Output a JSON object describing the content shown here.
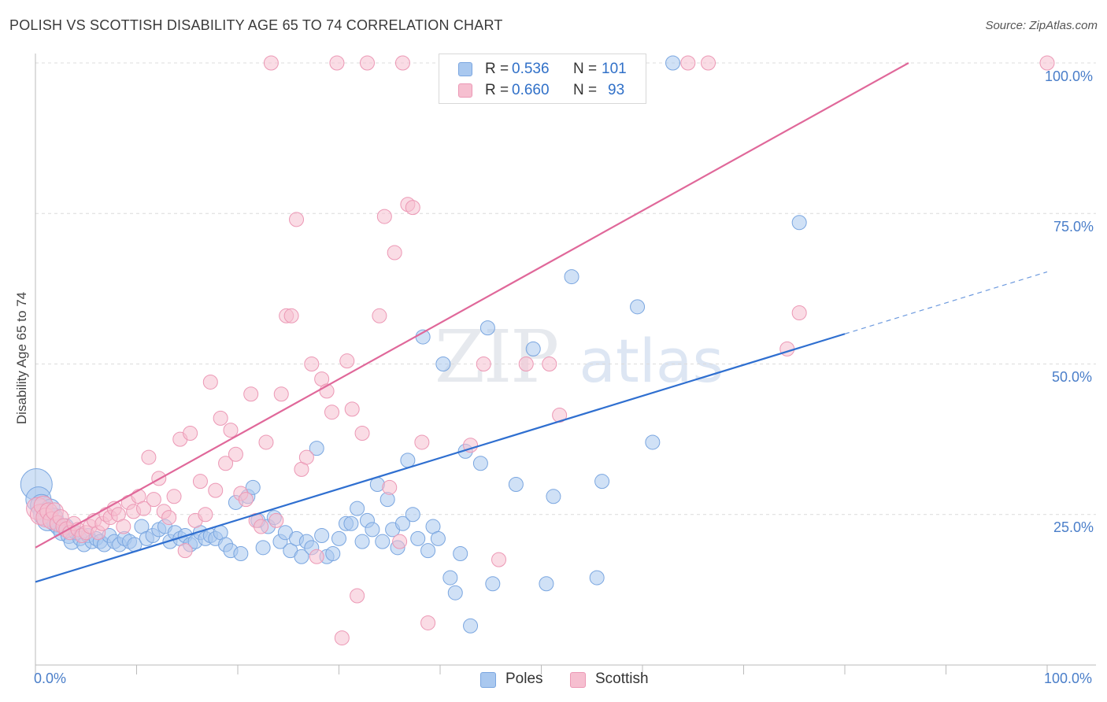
{
  "header": {
    "title": "POLISH VS SCOTTISH DISABILITY AGE 65 TO 74 CORRELATION CHART",
    "source": "Source: ZipAtlas.com"
  },
  "watermark": {
    "zip": "ZIP",
    "atlas": "atlas"
  },
  "colors": {
    "poles_fill": "#a9c8ef",
    "poles_stroke": "#7aa6e0",
    "poles_line": "#2f6fd0",
    "scottish_fill": "#f6bfd0",
    "scottish_stroke": "#ec98b5",
    "scottish_line": "#e0689a",
    "tick_text": "#4a7ec9",
    "grid": "#dcdcdc"
  },
  "legend_top": {
    "poles": {
      "r_label": "R =",
      "r_value": "0.536",
      "n_label": "N =",
      "n_value": "101"
    },
    "scottish": {
      "r_label": "R =",
      "r_value": "0.660",
      "n_label": "N =",
      "n_value": "93"
    }
  },
  "chart_data": {
    "type": "scatter",
    "title": "POLISH VS SCOTTISH DISABILITY AGE 65 TO 74 CORRELATION CHART",
    "xlabel": "",
    "ylabel": "Disability Age 65 to 74",
    "xlim": [
      0,
      100
    ],
    "ylim": [
      0,
      100
    ],
    "x_tick_labels": [
      "0.0%",
      "100.0%"
    ],
    "y_ticks": [
      25,
      50,
      75,
      100
    ],
    "y_tick_labels": [
      "25.0%",
      "50.0%",
      "75.0%",
      "100.0%"
    ],
    "grid": "horizontal dashed",
    "legend_placement": "bottom-center",
    "series": [
      {
        "name": "Poles",
        "r": 0.536,
        "n": 101,
        "trend": {
          "x": [
            0,
            80
          ],
          "y": [
            13.8,
            55.0
          ],
          "dashed_extension": {
            "x": [
              80,
              100
            ],
            "y": [
              55.0,
              65.3
            ]
          }
        },
        "points": [
          [
            0.1,
            30.0,
            20
          ],
          [
            0.3,
            27.5,
            16
          ],
          [
            0.6,
            26.5,
            14
          ],
          [
            0.9,
            25.0,
            14
          ],
          [
            1.2,
            24.0,
            13
          ],
          [
            1.5,
            26.0,
            12
          ],
          [
            1.8,
            24.5,
            12
          ],
          [
            2.0,
            23.5,
            11
          ],
          [
            2.3,
            23.0,
            11
          ],
          [
            2.6,
            22.0,
            10
          ],
          [
            3.0,
            23.0,
            10
          ],
          [
            3.3,
            21.5,
            10
          ],
          [
            3.6,
            20.5,
            10
          ],
          [
            4.0,
            22.0,
            9
          ],
          [
            4.4,
            21.0,
            9
          ],
          [
            4.8,
            20.0,
            9
          ],
          [
            5.2,
            21.5,
            9
          ],
          [
            5.6,
            20.5,
            9
          ],
          [
            6.0,
            21.0,
            9
          ],
          [
            6.4,
            20.5,
            9
          ],
          [
            6.8,
            20.0,
            9
          ],
          [
            7.3,
            21.5,
            9
          ],
          [
            7.8,
            20.5,
            9
          ],
          [
            8.3,
            20.0,
            9
          ],
          [
            8.8,
            21.0,
            9
          ],
          [
            9.3,
            20.5,
            9
          ],
          [
            9.8,
            20.0,
            9
          ],
          [
            10.5,
            23.0,
            9
          ],
          [
            11.0,
            21.0,
            9
          ],
          [
            11.6,
            21.5,
            9
          ],
          [
            12.2,
            22.5,
            9
          ],
          [
            12.8,
            23.0,
            9
          ],
          [
            13.3,
            20.5,
            9
          ],
          [
            13.8,
            22.0,
            9
          ],
          [
            14.3,
            21.0,
            9
          ],
          [
            14.8,
            21.5,
            9
          ],
          [
            15.3,
            20.0,
            9
          ],
          [
            15.8,
            20.5,
            9
          ],
          [
            16.3,
            22.0,
            9
          ],
          [
            16.8,
            21.0,
            9
          ],
          [
            17.3,
            21.5,
            9
          ],
          [
            17.8,
            21.0,
            9
          ],
          [
            18.3,
            22.0,
            9
          ],
          [
            18.8,
            20.0,
            9
          ],
          [
            19.3,
            19.0,
            9
          ],
          [
            19.8,
            27.0,
            9
          ],
          [
            20.3,
            18.5,
            9
          ],
          [
            21.0,
            28.0,
            9
          ],
          [
            21.5,
            29.5,
            9
          ],
          [
            22.0,
            24.0,
            9
          ],
          [
            22.5,
            19.5,
            9
          ],
          [
            23.0,
            23.0,
            9
          ],
          [
            23.6,
            24.5,
            9
          ],
          [
            24.2,
            20.5,
            9
          ],
          [
            24.7,
            22.0,
            9
          ],
          [
            25.2,
            19.0,
            9
          ],
          [
            25.8,
            21.0,
            9
          ],
          [
            26.3,
            18.0,
            9
          ],
          [
            26.8,
            20.5,
            9
          ],
          [
            27.3,
            19.5,
            9
          ],
          [
            27.8,
            36.0,
            9
          ],
          [
            28.3,
            21.5,
            9
          ],
          [
            28.8,
            18.0,
            9
          ],
          [
            29.4,
            18.5,
            9
          ],
          [
            30.0,
            21.0,
            9
          ],
          [
            30.7,
            23.5,
            9
          ],
          [
            31.2,
            23.5,
            9
          ],
          [
            31.8,
            26.0,
            9
          ],
          [
            32.3,
            20.5,
            9
          ],
          [
            32.8,
            24.0,
            9
          ],
          [
            33.3,
            22.5,
            9
          ],
          [
            33.8,
            30.0,
            9
          ],
          [
            34.3,
            20.5,
            9
          ],
          [
            34.8,
            27.5,
            9
          ],
          [
            35.3,
            22.5,
            9
          ],
          [
            35.8,
            19.5,
            9
          ],
          [
            36.3,
            23.5,
            9
          ],
          [
            36.8,
            34.0,
            9
          ],
          [
            37.3,
            25.0,
            9
          ],
          [
            37.8,
            21.0,
            9
          ],
          [
            38.3,
            54.5,
            9
          ],
          [
            38.8,
            19.0,
            9
          ],
          [
            39.3,
            23.0,
            9
          ],
          [
            39.8,
            21.0,
            9
          ],
          [
            40.3,
            50.0,
            9
          ],
          [
            41.0,
            14.5,
            9
          ],
          [
            41.5,
            12.0,
            9
          ],
          [
            42.0,
            18.5,
            9
          ],
          [
            42.5,
            35.5,
            9
          ],
          [
            43.0,
            6.5,
            9
          ],
          [
            44.0,
            33.5,
            9
          ],
          [
            44.7,
            56.0,
            9
          ],
          [
            45.2,
            13.5,
            9
          ],
          [
            47.5,
            30.0,
            9
          ],
          [
            49.2,
            52.5,
            9
          ],
          [
            50.5,
            13.5,
            9
          ],
          [
            51.2,
            28.0,
            9
          ],
          [
            53.0,
            64.5,
            9
          ],
          [
            55.5,
            14.5,
            9
          ],
          [
            56.0,
            30.5,
            9
          ],
          [
            57.5,
            100.0,
            9
          ],
          [
            59.5,
            59.5,
            9
          ],
          [
            61.0,
            37.0,
            9
          ],
          [
            63.0,
            100.0,
            9
          ],
          [
            75.5,
            73.5,
            9
          ]
        ]
      },
      {
        "name": "Scottish",
        "r": 0.66,
        "n": 93,
        "trend": {
          "x": [
            0,
            86.3
          ],
          "y": [
            19.5,
            100
          ]
        },
        "points": [
          [
            0.2,
            26.0,
            14
          ],
          [
            0.5,
            25.0,
            13
          ],
          [
            0.8,
            26.5,
            12
          ],
          [
            1.0,
            24.5,
            12
          ],
          [
            1.3,
            25.5,
            11
          ],
          [
            1.6,
            24.0,
            11
          ],
          [
            1.9,
            25.5,
            11
          ],
          [
            2.2,
            23.5,
            10
          ],
          [
            2.5,
            24.5,
            10
          ],
          [
            2.8,
            23.0,
            10
          ],
          [
            3.1,
            22.5,
            10
          ],
          [
            3.4,
            22.0,
            9
          ],
          [
            3.8,
            23.5,
            9
          ],
          [
            4.2,
            22.5,
            9
          ],
          [
            4.6,
            21.5,
            9
          ],
          [
            5.0,
            22.0,
            9
          ],
          [
            5.4,
            23.0,
            9
          ],
          [
            5.8,
            24.0,
            9
          ],
          [
            6.2,
            22.0,
            9
          ],
          [
            6.6,
            23.5,
            9
          ],
          [
            7.0,
            25.0,
            9
          ],
          [
            7.4,
            24.5,
            9
          ],
          [
            7.8,
            26.0,
            9
          ],
          [
            8.2,
            25.0,
            9
          ],
          [
            8.7,
            23.0,
            9
          ],
          [
            9.2,
            27.0,
            9
          ],
          [
            9.7,
            25.5,
            9
          ],
          [
            10.2,
            28.0,
            9
          ],
          [
            10.7,
            26.0,
            9
          ],
          [
            11.2,
            34.5,
            9
          ],
          [
            11.7,
            27.5,
            9
          ],
          [
            12.2,
            31.0,
            9
          ],
          [
            12.7,
            25.5,
            9
          ],
          [
            13.2,
            24.5,
            9
          ],
          [
            13.7,
            28.0,
            9
          ],
          [
            14.3,
            37.5,
            9
          ],
          [
            14.8,
            19.0,
            9
          ],
          [
            15.3,
            38.5,
            9
          ],
          [
            15.8,
            24.0,
            9
          ],
          [
            16.3,
            30.5,
            9
          ],
          [
            16.8,
            25.0,
            9
          ],
          [
            17.3,
            47.0,
            9
          ],
          [
            17.8,
            29.0,
            9
          ],
          [
            18.3,
            41.0,
            9
          ],
          [
            18.8,
            33.5,
            9
          ],
          [
            19.3,
            39.0,
            9
          ],
          [
            19.8,
            35.0,
            9
          ],
          [
            20.3,
            28.5,
            9
          ],
          [
            20.8,
            27.5,
            9
          ],
          [
            21.3,
            45.0,
            9
          ],
          [
            21.8,
            24.0,
            9
          ],
          [
            22.3,
            23.0,
            9
          ],
          [
            22.8,
            37.0,
            9
          ],
          [
            23.3,
            100.0,
            9
          ],
          [
            23.8,
            24.0,
            9
          ],
          [
            24.3,
            45.0,
            9
          ],
          [
            24.8,
            58.0,
            9
          ],
          [
            25.3,
            58.0,
            9
          ],
          [
            25.8,
            74.0,
            9
          ],
          [
            26.3,
            32.5,
            9
          ],
          [
            26.8,
            34.5,
            9
          ],
          [
            27.3,
            50.0,
            9
          ],
          [
            27.8,
            18.0,
            9
          ],
          [
            28.3,
            47.5,
            9
          ],
          [
            28.8,
            45.5,
            9
          ],
          [
            29.3,
            42.0,
            9
          ],
          [
            29.8,
            100.0,
            9
          ],
          [
            30.3,
            4.5,
            9
          ],
          [
            30.8,
            50.5,
            9
          ],
          [
            31.3,
            42.5,
            9
          ],
          [
            31.8,
            11.5,
            9
          ],
          [
            32.3,
            38.5,
            9
          ],
          [
            32.8,
            100.0,
            9
          ],
          [
            34.0,
            58.0,
            9
          ],
          [
            34.5,
            74.5,
            9
          ],
          [
            35.0,
            29.5,
            9
          ],
          [
            35.5,
            68.5,
            9
          ],
          [
            36.0,
            20.5,
            9
          ],
          [
            36.3,
            100.0,
            9
          ],
          [
            36.8,
            76.5,
            9
          ],
          [
            37.3,
            76.0,
            9
          ],
          [
            38.2,
            37.0,
            9
          ],
          [
            38.8,
            7.0,
            9
          ],
          [
            43.0,
            36.5,
            9
          ],
          [
            44.3,
            50.0,
            9
          ],
          [
            45.8,
            17.5,
            9
          ],
          [
            48.5,
            50.0,
            9
          ],
          [
            50.8,
            50.0,
            9
          ],
          [
            51.8,
            41.5,
            9
          ],
          [
            52.8,
            100.0,
            9
          ],
          [
            64.5,
            100.0,
            9
          ],
          [
            66.5,
            100.0,
            9
          ],
          [
            74.3,
            52.5,
            9
          ],
          [
            75.5,
            58.5,
            9
          ],
          [
            100.0,
            100.0,
            9
          ]
        ]
      }
    ]
  }
}
